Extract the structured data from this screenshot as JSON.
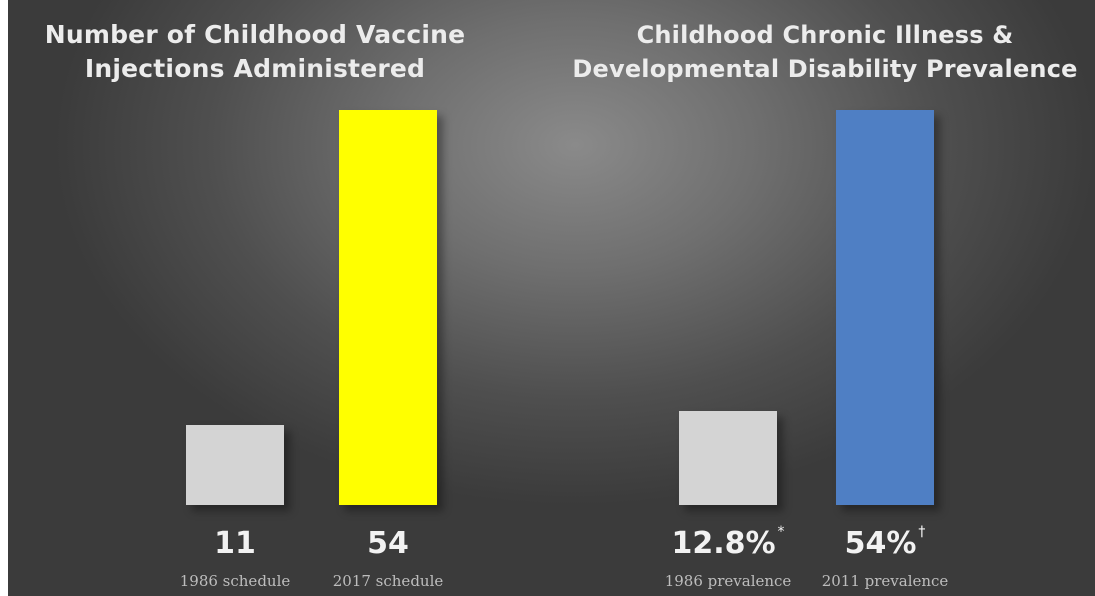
{
  "chart_data": [
    {
      "type": "bar",
      "title_lines": [
        "Number of Childhood Vaccine",
        "Injections Administered"
      ],
      "categories": [
        "1986 schedule",
        "2017 schedule"
      ],
      "values": [
        11,
        54
      ],
      "value_labels": [
        "11",
        "54"
      ],
      "footnotes": [
        "",
        ""
      ],
      "colors": [
        "#d4d4d4",
        "#ffff00"
      ],
      "xlabel": "",
      "ylabel": "",
      "ylim": [
        0,
        54
      ],
      "grid": false
    },
    {
      "type": "bar",
      "title_lines": [
        "Childhood Chronic Illness &",
        "Developmental Disability Prevalence"
      ],
      "categories": [
        "1986 prevalence",
        "2011 prevalence"
      ],
      "values": [
        12.8,
        54
      ],
      "value_labels": [
        "12.8%",
        "54%"
      ],
      "footnotes": [
        "*",
        "†"
      ],
      "colors": [
        "#d4d4d4",
        "#4f7fc4"
      ],
      "xlabel": "",
      "ylabel": "",
      "ylim": [
        0,
        54
      ],
      "grid": false
    }
  ]
}
